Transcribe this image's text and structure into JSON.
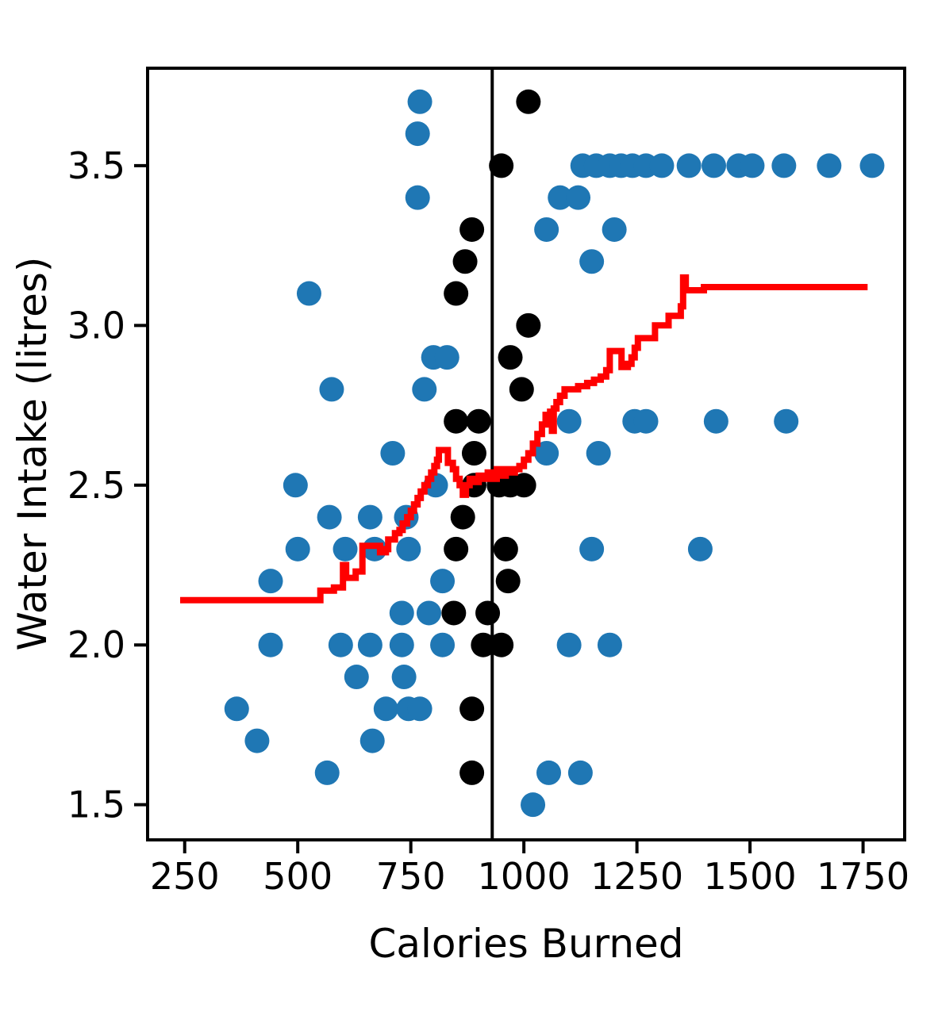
{
  "chart_data": {
    "type": "scatter",
    "title": "",
    "xlabel": "Calories Burned",
    "ylabel": "Water Intake (litres)",
    "xlim": [
      168,
      1842
    ],
    "ylim": [
      1.39,
      3.805
    ],
    "grid": false,
    "legend": "none",
    "xticks": {
      "values": [
        250,
        500,
        750,
        1000,
        1250,
        1500,
        1750
      ],
      "labels": [
        "250",
        "500",
        "750",
        "1000",
        "1250",
        "1500",
        "1750"
      ]
    },
    "yticks": {
      "values": [
        1.5,
        2.0,
        2.5,
        3.0,
        3.5
      ],
      "labels": [
        "1.5",
        "2.0",
        "2.5",
        "3.0",
        "3.5"
      ]
    },
    "colors": {
      "scatter_main": "#1f77b4",
      "scatter_highlight": "#000000",
      "rolling_line": "#ff0000",
      "reference_line": "#000000"
    },
    "series": [
      {
        "name": "scatter-blue",
        "kind": "scatter",
        "color": "#1f77b4",
        "points": [
          [
            770,
            3.7
          ],
          [
            765,
            3.6
          ],
          [
            1130,
            3.5
          ],
          [
            1160,
            3.5
          ],
          [
            1190,
            3.5
          ],
          [
            1215,
            3.5
          ],
          [
            1240,
            3.5
          ],
          [
            1270,
            3.5
          ],
          [
            1305,
            3.5
          ],
          [
            1365,
            3.5
          ],
          [
            1420,
            3.5
          ],
          [
            1475,
            3.5
          ],
          [
            1505,
            3.5
          ],
          [
            1575,
            3.5
          ],
          [
            1675,
            3.5
          ],
          [
            1770,
            3.5
          ],
          [
            765,
            3.4
          ],
          [
            1080,
            3.4
          ],
          [
            1120,
            3.4
          ],
          [
            1050,
            3.3
          ],
          [
            1200,
            3.3
          ],
          [
            1150,
            3.2
          ],
          [
            525,
            3.1
          ],
          [
            800,
            2.9
          ],
          [
            830,
            2.9
          ],
          [
            575,
            2.8
          ],
          [
            780,
            2.8
          ],
          [
            1100,
            2.7
          ],
          [
            1245,
            2.7
          ],
          [
            1270,
            2.7
          ],
          [
            1425,
            2.7
          ],
          [
            1580,
            2.7
          ],
          [
            710,
            2.6
          ],
          [
            1050,
            2.6
          ],
          [
            1165,
            2.6
          ],
          [
            495,
            2.5
          ],
          [
            805,
            2.5
          ],
          [
            570,
            2.4
          ],
          [
            660,
            2.4
          ],
          [
            740,
            2.4
          ],
          [
            500,
            2.3
          ],
          [
            605,
            2.3
          ],
          [
            670,
            2.3
          ],
          [
            745,
            2.3
          ],
          [
            1150,
            2.3
          ],
          [
            1390,
            2.3
          ],
          [
            440,
            2.2
          ],
          [
            820,
            2.2
          ],
          [
            730,
            2.1
          ],
          [
            790,
            2.1
          ],
          [
            440,
            2.0
          ],
          [
            595,
            2.0
          ],
          [
            660,
            2.0
          ],
          [
            730,
            2.0
          ],
          [
            820,
            2.0
          ],
          [
            1100,
            2.0
          ],
          [
            1190,
            2.0
          ],
          [
            630,
            1.9
          ],
          [
            735,
            1.9
          ],
          [
            365,
            1.8
          ],
          [
            695,
            1.8
          ],
          [
            745,
            1.8
          ],
          [
            770,
            1.8
          ],
          [
            410,
            1.7
          ],
          [
            665,
            1.7
          ],
          [
            565,
            1.6
          ],
          [
            1055,
            1.6
          ],
          [
            1125,
            1.6
          ],
          [
            1020,
            1.5
          ]
        ]
      },
      {
        "name": "scatter-black",
        "kind": "scatter",
        "color": "#000000",
        "points": [
          [
            1010,
            3.7
          ],
          [
            950,
            3.5
          ],
          [
            885,
            3.3
          ],
          [
            870,
            3.2
          ],
          [
            850,
            3.1
          ],
          [
            1010,
            3.0
          ],
          [
            970,
            2.9
          ],
          [
            995,
            2.8
          ],
          [
            850,
            2.7
          ],
          [
            900,
            2.7
          ],
          [
            890,
            2.6
          ],
          [
            890,
            2.5
          ],
          [
            945,
            2.5
          ],
          [
            970,
            2.5
          ],
          [
            1000,
            2.5
          ],
          [
            865,
            2.4
          ],
          [
            850,
            2.3
          ],
          [
            960,
            2.3
          ],
          [
            965,
            2.2
          ],
          [
            845,
            2.1
          ],
          [
            920,
            2.1
          ],
          [
            910,
            2.0
          ],
          [
            950,
            2.0
          ],
          [
            885,
            1.8
          ],
          [
            885,
            1.6
          ]
        ]
      },
      {
        "name": "rolling-line",
        "kind": "step-line",
        "color": "#ff0000",
        "stroke_width": 8,
        "points": [
          [
            240,
            2.14
          ],
          [
            545,
            2.14
          ],
          [
            550,
            2.17
          ],
          [
            575,
            2.17
          ],
          [
            580,
            2.18
          ],
          [
            598,
            2.18
          ],
          [
            600,
            2.25
          ],
          [
            607,
            2.25
          ],
          [
            607,
            2.21
          ],
          [
            622,
            2.21
          ],
          [
            628,
            2.23
          ],
          [
            640,
            2.23
          ],
          [
            643,
            2.31
          ],
          [
            678,
            2.31
          ],
          [
            682,
            2.29
          ],
          [
            695,
            2.3
          ],
          [
            700,
            2.33
          ],
          [
            712,
            2.33
          ],
          [
            715,
            2.35
          ],
          [
            725,
            2.36
          ],
          [
            732,
            2.38
          ],
          [
            742,
            2.4
          ],
          [
            750,
            2.42
          ],
          [
            757,
            2.44
          ],
          [
            765,
            2.46
          ],
          [
            772,
            2.48
          ],
          [
            780,
            2.5
          ],
          [
            788,
            2.52
          ],
          [
            795,
            2.54
          ],
          [
            802,
            2.56
          ],
          [
            808,
            2.58
          ],
          [
            812,
            2.61
          ],
          [
            828,
            2.61
          ],
          [
            832,
            2.57
          ],
          [
            843,
            2.55
          ],
          [
            850,
            2.52
          ],
          [
            858,
            2.5
          ],
          [
            865,
            2.47
          ],
          [
            872,
            2.5
          ],
          [
            880,
            2.52
          ],
          [
            890,
            2.51
          ],
          [
            900,
            2.53
          ],
          [
            910,
            2.52
          ],
          [
            920,
            2.54
          ],
          [
            930,
            2.52
          ],
          [
            940,
            2.55
          ],
          [
            950,
            2.53
          ],
          [
            960,
            2.55
          ],
          [
            970,
            2.54
          ],
          [
            980,
            2.55
          ],
          [
            990,
            2.56
          ],
          [
            1000,
            2.58
          ],
          [
            1010,
            2.6
          ],
          [
            1020,
            2.63
          ],
          [
            1030,
            2.66
          ],
          [
            1040,
            2.69
          ],
          [
            1048,
            2.72
          ],
          [
            1058,
            2.73
          ],
          [
            1062,
            2.67
          ],
          [
            1066,
            2.74
          ],
          [
            1072,
            2.76
          ],
          [
            1080,
            2.78
          ],
          [
            1090,
            2.8
          ],
          [
            1115,
            2.8
          ],
          [
            1120,
            2.81
          ],
          [
            1140,
            2.82
          ],
          [
            1155,
            2.83
          ],
          [
            1170,
            2.84
          ],
          [
            1182,
            2.86
          ],
          [
            1190,
            2.92
          ],
          [
            1213,
            2.92
          ],
          [
            1216,
            2.87
          ],
          [
            1230,
            2.88
          ],
          [
            1238,
            2.9
          ],
          [
            1245,
            2.93
          ],
          [
            1252,
            2.96
          ],
          [
            1285,
            2.96
          ],
          [
            1290,
            3.0
          ],
          [
            1315,
            3.0
          ],
          [
            1320,
            3.03
          ],
          [
            1342,
            3.03
          ],
          [
            1347,
            3.06
          ],
          [
            1350,
            3.06
          ],
          [
            1352,
            3.15
          ],
          [
            1357,
            3.15
          ],
          [
            1358,
            3.11
          ],
          [
            1395,
            3.11
          ],
          [
            1398,
            3.12
          ],
          [
            1760,
            3.12
          ]
        ]
      },
      {
        "name": "reference-vline",
        "kind": "vline",
        "color": "#000000",
        "stroke_width": 4,
        "x": 930
      }
    ]
  }
}
